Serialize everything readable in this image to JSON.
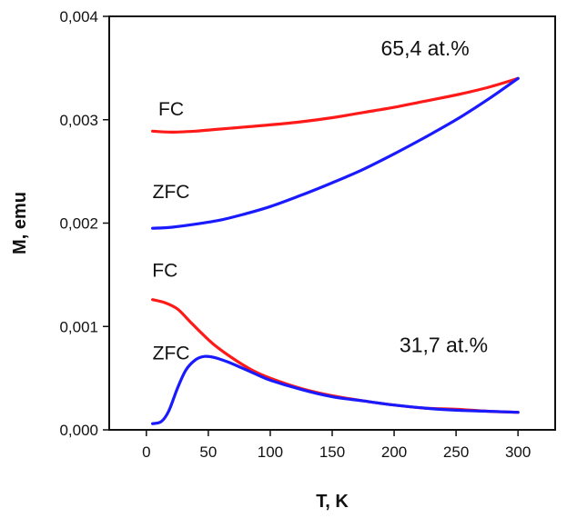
{
  "chart_data": {
    "type": "line",
    "xlabel": "T, K",
    "ylabel": "M, emu",
    "xlim": [
      -30,
      330
    ],
    "ylim": [
      0,
      0.004
    ],
    "x_ticks": [
      0,
      50,
      100,
      150,
      200,
      250,
      300
    ],
    "y_ticks": [
      {
        "value": 0.0,
        "label": "0,000"
      },
      {
        "value": 0.001,
        "label": "0,001"
      },
      {
        "value": 0.002,
        "label": "0,002"
      },
      {
        "value": 0.003,
        "label": "0,003"
      },
      {
        "value": 0.004,
        "label": "0,004"
      }
    ],
    "grid": false,
    "series": [
      {
        "name": "FC",
        "group": "65,4 at.%",
        "color": "#ff1a1a",
        "x": [
          5,
          20,
          40,
          60,
          80,
          100,
          125,
          150,
          175,
          200,
          225,
          250,
          275,
          300
        ],
        "y": [
          0.00289,
          0.00288,
          0.00289,
          0.00291,
          0.00293,
          0.00295,
          0.00298,
          0.00302,
          0.00307,
          0.00312,
          0.00318,
          0.00324,
          0.00331,
          0.0034
        ]
      },
      {
        "name": "ZFC",
        "group": "65,4 at.%",
        "color": "#1a1aff",
        "x": [
          5,
          20,
          40,
          60,
          80,
          100,
          125,
          150,
          175,
          200,
          225,
          250,
          275,
          300
        ],
        "y": [
          0.00195,
          0.00196,
          0.00199,
          0.00203,
          0.00209,
          0.00216,
          0.00227,
          0.00239,
          0.00252,
          0.00267,
          0.00283,
          0.003,
          0.00319,
          0.0034
        ]
      },
      {
        "name": "FC",
        "group": "31,7 at.%",
        "color": "#ff1a1a",
        "x": [
          5,
          15,
          25,
          35,
          45,
          55,
          70,
          85,
          100,
          125,
          150,
          175,
          200,
          225,
          250,
          275,
          300
        ],
        "y": [
          0.00126,
          0.00123,
          0.00117,
          0.00105,
          0.00093,
          0.00082,
          0.00069,
          0.00058,
          0.0005,
          0.0004,
          0.00033,
          0.00028,
          0.00024,
          0.00021,
          0.0002,
          0.00018,
          0.00017
        ]
      },
      {
        "name": "ZFC",
        "group": "31,7 at.%",
        "color": "#1a1aff",
        "x": [
          5,
          12,
          18,
          25,
          32,
          40,
          47,
          55,
          65,
          75,
          90,
          100,
          125,
          150,
          175,
          200,
          225,
          250,
          275,
          300
        ],
        "y": [
          6e-05,
          8e-05,
          0.00018,
          0.0004,
          0.00058,
          0.00068,
          0.00071,
          0.0007,
          0.00066,
          0.00061,
          0.00053,
          0.00048,
          0.00039,
          0.00032,
          0.00028,
          0.00024,
          0.00021,
          0.00019,
          0.00018,
          0.00017
        ]
      }
    ],
    "curve_labels": [
      {
        "text": "FC",
        "x": 20,
        "y": 0.00304
      },
      {
        "text": "ZFC",
        "x": 20,
        "y": 0.00224
      },
      {
        "text": "FC",
        "x": 15,
        "y": 0.00148
      },
      {
        "text": "ZFC",
        "x": 20,
        "y": 0.00068
      }
    ],
    "annotations": [
      {
        "text": "65,4 at.%",
        "x": 225,
        "y": 0.00362
      },
      {
        "text": "31,7 at.%",
        "x": 240,
        "y": 0.00075
      }
    ]
  }
}
